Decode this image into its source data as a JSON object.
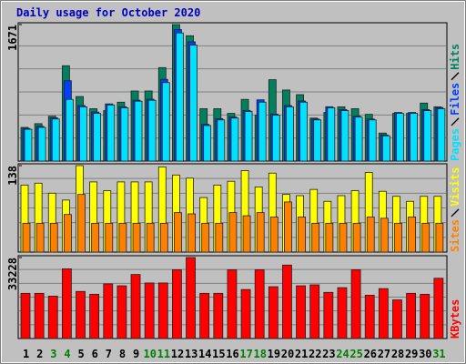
{
  "chart_data": {
    "type": "bar",
    "title": "Daily usage for October 2020",
    "categories": [
      "1",
      "2",
      "3",
      "4",
      "5",
      "6",
      "7",
      "8",
      "9",
      "10",
      "11",
      "12",
      "13",
      "14",
      "15",
      "16",
      "17",
      "18",
      "19",
      "20",
      "21",
      "22",
      "23",
      "24",
      "25",
      "26",
      "27",
      "28",
      "29",
      "30",
      "31"
    ],
    "category_colors": [
      "#000000",
      "#000000",
      "#007f00",
      "#007f00",
      "#000000",
      "#000000",
      "#000000",
      "#000000",
      "#000000",
      "#007f00",
      "#007f00",
      "#000000",
      "#000000",
      "#000000",
      "#000000",
      "#000000",
      "#007f00",
      "#007f00",
      "#000000",
      "#000000",
      "#000000",
      "#000000",
      "#000000",
      "#007f00",
      "#007f00",
      "#000000",
      "#000000",
      "#000000",
      "#000000",
      "#000000",
      "#007f00"
    ],
    "panels": [
      {
        "ylim": [
          0,
          1671
        ],
        "yticks": [
          1671
        ],
        "series": [
          {
            "name": "Hits",
            "color": "#00805c",
            "values": [
              412,
              458,
              549,
              1167,
              790,
              641,
              618,
              721,
              858,
              858,
              1144,
              1671,
              1534,
              641,
              641,
              584,
              755,
              561,
              996,
              870,
              813,
              526,
              595,
              664,
              641,
              572,
              343,
              584,
              584,
              710,
              664
            ]
          },
          {
            "name": "Files",
            "color": "#0040ff",
            "values": [
              399,
              425,
              530,
              984,
              680,
              600,
              700,
              665,
              745,
              757,
              1000,
              1610,
              1460,
              450,
              520,
              540,
              620,
              750,
              575,
              680,
              735,
              515,
              665,
              630,
              550,
              515,
              320,
              595,
              595,
              630,
              655
            ]
          },
          {
            "name": "Pages",
            "color": "#00e0ff",
            "values": [
              389,
              412,
              515,
              755,
              664,
              584,
              687,
              652,
              733,
              744,
              961,
              1568,
              1419,
              435,
              504,
              526,
              607,
              721,
              561,
              664,
              721,
              504,
              652,
              618,
              538,
              504,
              309,
              584,
              584,
              618,
              641
            ]
          }
        ]
      },
      {
        "ylim": [
          0,
          138
        ],
        "yticks": [
          138
        ],
        "series": [
          {
            "name": "Visits",
            "color": "#ffff00",
            "values": [
              107,
              110,
              94,
              83,
              138,
              112,
              98,
              112,
              112,
              112,
              136,
              123,
              118,
              87,
              107,
              113,
              130,
              104,
              126,
              92,
              90,
              100,
              81,
              90,
              98,
              127,
              97,
              89,
              81,
              89,
              89
            ]
          },
          {
            "name": "Sites",
            "color": "#ff8000",
            "values": [
              46,
              46,
              46,
              60,
              92,
              46,
              46,
              46,
              46,
              46,
              46,
              63,
              61,
              46,
              46,
              63,
              58,
              63,
              56,
              80,
              56,
              46,
              46,
              46,
              46,
              56,
              54,
              46,
              56,
              46,
              46
            ]
          }
        ]
      },
      {
        "ylim": [
          0,
          33228
        ],
        "yticks": [
          33228
        ],
        "series": [
          {
            "name": "KBytes",
            "color": "#ff0000",
            "values": [
              18546,
              18546,
              17386,
              28591,
              19318,
              18159,
              22409,
              21637,
              26273,
              22796,
              22796,
              28205,
              33228,
              18546,
              18546,
              28205,
              20091,
              28205,
              21250,
              30136,
              21637,
              22023,
              18932,
              20864,
              28205,
              17773,
              20477,
              15841,
              18546,
              18159,
              24728
            ]
          }
        ]
      }
    ]
  }
}
